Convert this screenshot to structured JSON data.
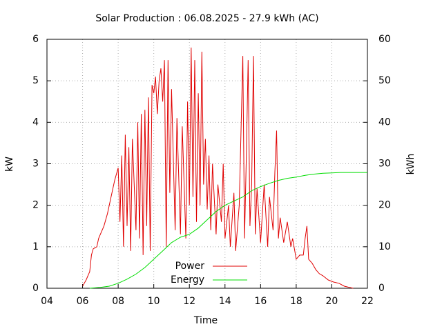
{
  "chart_data": {
    "type": "line",
    "title": "Solar Production : 06.08.2025 - 27.9 kWh (AC)",
    "xlabel": "Time",
    "ylabel": "kW",
    "y2label": "kWh",
    "xlim": [
      4,
      22
    ],
    "xticks": [
      {
        "value": 4,
        "label": "04"
      },
      {
        "value": 6,
        "label": "06"
      },
      {
        "value": 8,
        "label": "08"
      },
      {
        "value": 10,
        "label": "10"
      },
      {
        "value": 12,
        "label": "12"
      },
      {
        "value": 14,
        "label": "14"
      },
      {
        "value": 16,
        "label": "16"
      },
      {
        "value": 18,
        "label": "18"
      },
      {
        "value": 20,
        "label": "20"
      },
      {
        "value": 22,
        "label": "22"
      }
    ],
    "ylim": [
      0,
      6
    ],
    "yticks": [
      0,
      1,
      2,
      3,
      4,
      5,
      6
    ],
    "y2lim": [
      0,
      60
    ],
    "y2ticks": [
      0,
      10,
      20,
      30,
      40,
      50,
      60
    ],
    "grid": true,
    "legend": "bottom",
    "series": [
      {
        "name": "Power",
        "color": "#e00000",
        "x": [
          6.0,
          6.2,
          6.4,
          6.5,
          6.6,
          6.8,
          6.9,
          7.0,
          7.2,
          7.4,
          7.6,
          7.8,
          8.0,
          8.1,
          8.2,
          8.3,
          8.4,
          8.5,
          8.6,
          8.7,
          8.8,
          9.0,
          9.1,
          9.2,
          9.3,
          9.4,
          9.5,
          9.6,
          9.7,
          9.8,
          9.9,
          10.0,
          10.1,
          10.2,
          10.3,
          10.4,
          10.5,
          10.6,
          10.7,
          10.8,
          10.9,
          11.0,
          11.2,
          11.3,
          11.5,
          11.6,
          11.8,
          11.9,
          12.0,
          12.1,
          12.2,
          12.3,
          12.4,
          12.5,
          12.6,
          12.7,
          12.8,
          12.9,
          13.0,
          13.1,
          13.2,
          13.3,
          13.5,
          13.6,
          13.8,
          13.9,
          14.0,
          14.2,
          14.3,
          14.5,
          14.6,
          14.8,
          15.0,
          15.1,
          15.2,
          15.3,
          15.4,
          15.5,
          15.6,
          15.7,
          15.8,
          16.0,
          16.2,
          16.4,
          16.5,
          16.7,
          16.8,
          16.9,
          17.0,
          17.1,
          17.3,
          17.5,
          17.7,
          17.8,
          18.0,
          18.2,
          18.4,
          18.5,
          18.6,
          18.7,
          18.9,
          19.1,
          19.3,
          19.5,
          19.8,
          20.1,
          20.4,
          20.7,
          21.0,
          21.2
        ],
        "values": [
          0.05,
          0.2,
          0.4,
          0.8,
          0.95,
          1.0,
          1.2,
          1.3,
          1.5,
          1.8,
          2.2,
          2.6,
          2.9,
          1.6,
          3.2,
          1.0,
          3.7,
          1.5,
          3.4,
          0.9,
          3.6,
          1.4,
          4.0,
          1.2,
          4.2,
          0.8,
          4.3,
          1.5,
          4.6,
          0.9,
          4.9,
          4.7,
          5.1,
          4.2,
          5.0,
          5.3,
          4.5,
          5.5,
          1.0,
          5.5,
          2.3,
          4.8,
          1.4,
          4.1,
          1.3,
          3.9,
          1.2,
          4.5,
          2.0,
          5.8,
          2.2,
          5.5,
          1.6,
          4.7,
          2.0,
          5.7,
          2.5,
          3.6,
          1.9,
          3.2,
          1.4,
          3.0,
          1.3,
          2.5,
          1.6,
          3.0,
          1.2,
          2.0,
          1.0,
          2.3,
          0.9,
          2.0,
          5.6,
          1.2,
          3.2,
          5.5,
          1.5,
          2.5,
          5.6,
          1.3,
          2.4,
          1.1,
          2.5,
          1.0,
          2.2,
          1.4,
          2.8,
          3.8,
          1.2,
          1.7,
          1.1,
          1.6,
          1.0,
          1.2,
          0.7,
          0.8,
          0.8,
          1.2,
          1.5,
          0.7,
          0.6,
          0.45,
          0.35,
          0.3,
          0.2,
          0.15,
          0.12,
          0.05,
          0.02,
          0
        ]
      },
      {
        "name": "Energy",
        "color": "#00dd00",
        "axis": "y2",
        "x": [
          6.4,
          7.0,
          7.5,
          8.0,
          8.5,
          9.0,
          9.5,
          10.0,
          10.5,
          11.0,
          11.5,
          12.0,
          12.5,
          13.0,
          13.5,
          14.0,
          14.5,
          15.0,
          15.5,
          16.0,
          16.5,
          17.0,
          17.5,
          18.0,
          18.5,
          19.0,
          19.5,
          20.0,
          20.5,
          21.0,
          22.0
        ],
        "values": [
          0,
          0.2,
          0.5,
          1.2,
          2.2,
          3.4,
          5.0,
          7.0,
          9.0,
          11.0,
          12.3,
          13.0,
          14.5,
          16.5,
          18.5,
          20.0,
          21.0,
          22.0,
          23.5,
          24.5,
          25.3,
          26.0,
          26.5,
          26.8,
          27.2,
          27.5,
          27.7,
          27.8,
          27.9,
          27.9,
          27.9
        ]
      }
    ]
  }
}
